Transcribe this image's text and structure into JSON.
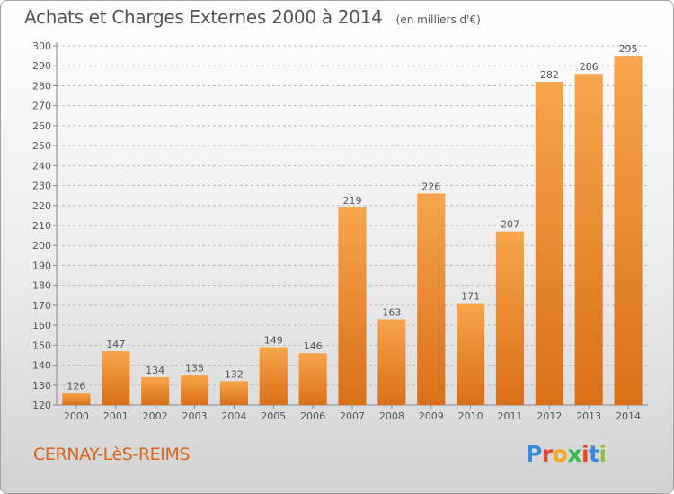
{
  "title": "Achats et Charges Externes 2000 à 2014",
  "unit": "(en milliers d'€)",
  "location": "CERNAY-LèS-REIMS",
  "logo": {
    "text": "Proxiti",
    "letter_colors": [
      "#3b8ad9",
      "#e8442c",
      "#f5a623",
      "#3cb54a",
      "#e8442c",
      "#3b8ad9",
      "#8cc63f"
    ]
  },
  "colors": {
    "bar_light": "#f7a54c",
    "bar_dark": "#d9701a",
    "text": "#555555",
    "grid": "#bbbbbb"
  },
  "chart_data": {
    "type": "bar",
    "categories": [
      "2000",
      "2001",
      "2002",
      "2003",
      "2004",
      "2005",
      "2006",
      "2007",
      "2008",
      "2009",
      "2010",
      "2011",
      "2012",
      "2013",
      "2014"
    ],
    "values": [
      126,
      147,
      134,
      135,
      132,
      149,
      146,
      219,
      163,
      226,
      171,
      207,
      282,
      286,
      295
    ],
    "title": "Achats et Charges Externes 2000 à 2014",
    "ylim": [
      120,
      300
    ],
    "yticks": [
      120,
      130,
      140,
      150,
      160,
      170,
      180,
      190,
      200,
      210,
      220,
      230,
      240,
      250,
      260,
      270,
      280,
      290,
      300
    ],
    "grid": "horizontal dashed",
    "data_labels": true
  }
}
